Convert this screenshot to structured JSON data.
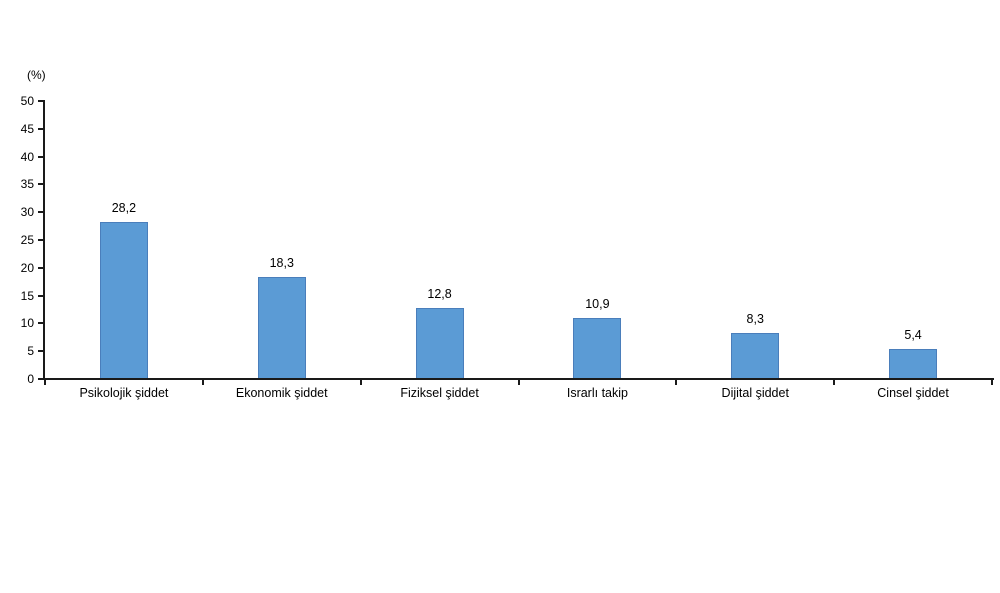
{
  "chart_data": {
    "type": "bar",
    "title": "",
    "xlabel": "",
    "ylabel": "(%)",
    "categories": [
      "Psikolojik şiddet",
      "Ekonomik şiddet",
      "Fiziksel şiddet",
      "Israrlı takip",
      "Dijital şiddet",
      "Cinsel şiddet"
    ],
    "values": [
      28.2,
      18.3,
      12.8,
      10.9,
      8.3,
      5.4
    ],
    "value_labels": [
      "28,2",
      "18,3",
      "12,8",
      "10,9",
      "8,3",
      "5,4"
    ],
    "ylim": [
      0,
      50
    ],
    "ytick_step": 5,
    "ytick_labels": [
      "0",
      "5",
      "10",
      "15",
      "20",
      "25",
      "30",
      "35",
      "40",
      "45",
      "50"
    ],
    "grid": false,
    "legend": "none",
    "colors": {
      "bar_fill": "#5B9BD5",
      "bar_border": "#4A7EBB",
      "axis": "#1a1a1a",
      "text": "#000000"
    }
  }
}
